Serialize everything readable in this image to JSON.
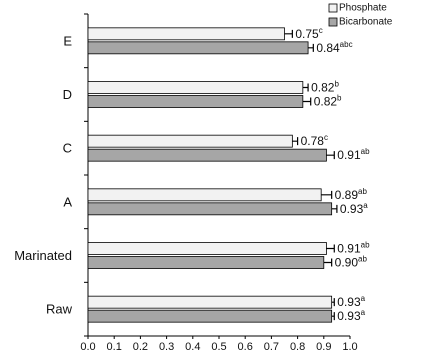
{
  "chart_data": {
    "type": "hbar",
    "categories": [
      "E",
      "D",
      "C",
      "A",
      "Marinated",
      "Raw"
    ],
    "series": [
      {
        "name": "Phosphate",
        "color": "#f2f2f2",
        "values": [
          0.75,
          0.82,
          0.78,
          0.89,
          0.91,
          0.93
        ],
        "errors": [
          0.03,
          0.02,
          0.02,
          0.04,
          0.03,
          0.01
        ],
        "value_labels": [
          "0.75",
          "0.82",
          "0.78",
          "0.89",
          "0.91",
          "0.93"
        ],
        "superscripts": [
          "c",
          "b",
          "c",
          "ab",
          "ab",
          "a"
        ]
      },
      {
        "name": "Bicarbonate",
        "color": "#a6a6a6",
        "values": [
          0.84,
          0.82,
          0.91,
          0.93,
          0.9,
          0.93
        ],
        "errors": [
          0.02,
          0.03,
          0.03,
          0.02,
          0.03,
          0.01
        ],
        "value_labels": [
          "0.84",
          "0.82",
          "0.91",
          "0.93",
          "0.90",
          "0.93"
        ],
        "superscripts": [
          "abc",
          "b",
          "ab",
          "a",
          "ab",
          "a"
        ]
      }
    ],
    "xlim": [
      0,
      1
    ],
    "xticks": [
      {
        "value": 0,
        "label": "0.0"
      },
      0.1,
      0.2,
      0.3,
      0.4,
      0.5,
      0.6,
      0.7,
      0.8,
      0.9,
      {
        "value": 1,
        "label": "1.0"
      }
    ],
    "grid": false,
    "legend": "top-right"
  }
}
